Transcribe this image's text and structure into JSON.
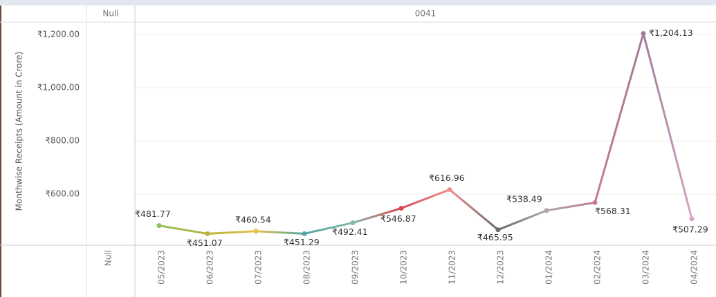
{
  "chart_data": {
    "type": "line",
    "column_headers": [
      "Null",
      "0041"
    ],
    "null_pane_x_label": "Null",
    "y_axis_label": "Monthwise Receipts (Amount in Crore)",
    "categories": [
      "05/2023",
      "06/2023",
      "07/2023",
      "08/2023",
      "09/2023",
      "10/2023",
      "11/2023",
      "12/2023",
      "01/2024",
      "02/2024",
      "03/2024",
      "04/2024"
    ],
    "values": [
      481.77,
      451.07,
      460.54,
      451.29,
      492.41,
      546.87,
      616.96,
      465.95,
      538.49,
      568.31,
      1204.13,
      507.29
    ],
    "value_labels": [
      "₹481.77",
      "₹451.07",
      "₹460.54",
      "₹451.29",
      "₹492.41",
      "₹546.87",
      "₹616.96",
      "₹465.95",
      "₹538.49",
      "₹568.31",
      "₹1,204.13",
      "₹507.29"
    ],
    "colors": [
      "#93c25b",
      "#b8b33e",
      "#e6c24c",
      "#4fa7a0",
      "#82bba9",
      "#d8464e",
      "#f28f8f",
      "#6a6a6a",
      "#b2a6aa",
      "#c47b97",
      "#a57a99",
      "#d6a3c3"
    ],
    "ylim": [
      408,
      1247
    ],
    "yticks": [
      {
        "value": 600,
        "label": "₹600.00"
      },
      {
        "value": 800,
        "label": "₹800.00"
      },
      {
        "value": 1000,
        "label": "₹1,000.00"
      },
      {
        "value": 1200,
        "label": "₹1,200.00"
      }
    ],
    "grid": true
  }
}
